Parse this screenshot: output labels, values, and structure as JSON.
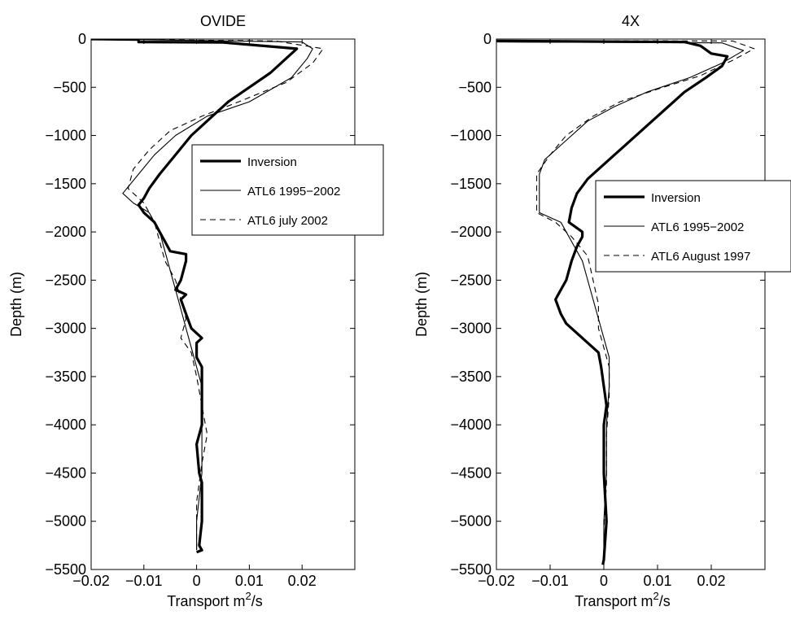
{
  "chart_data": [
    {
      "type": "line",
      "title": "OVIDE",
      "xlabel_main": "Transport m",
      "xlabel_sup": "2",
      "xlabel_tail": "/s",
      "ylabel": "Depth (m)",
      "xlim": [
        -0.02,
        0.03
      ],
      "ylim": [
        -5500,
        0
      ],
      "xticks": [
        -0.02,
        -0.01,
        0,
        0.01,
        0.02
      ],
      "xtick_labels": [
        "−0.02",
        "−0.01",
        "0",
        "0.01",
        "0.02"
      ],
      "yticks": [
        0,
        -500,
        -1000,
        -1500,
        -2000,
        -2500,
        -3000,
        -3500,
        -4000,
        -4500,
        -5000,
        -5500
      ],
      "ytick_labels": [
        "0",
        "−500",
        "−1000",
        "−1500",
        "−2000",
        "−2500",
        "−3000",
        "−3500",
        "−4000",
        "−4500",
        "−5000",
        "−5500"
      ],
      "legend_position": "center-right",
      "series": [
        {
          "name": "Inversion",
          "style": "thick",
          "points": [
            [
              -0.02,
              0
            ],
            [
              -0.011,
              -5
            ],
            [
              -0.011,
              -30
            ],
            [
              0.005,
              -35
            ],
            [
              0.019,
              -100
            ],
            [
              0.017,
              -200
            ],
            [
              0.014,
              -350
            ],
            [
              0.01,
              -500
            ],
            [
              0.006,
              -650
            ],
            [
              0.003,
              -800
            ],
            [
              -0.001,
              -1000
            ],
            [
              -0.004,
              -1200
            ],
            [
              -0.007,
              -1400
            ],
            [
              -0.009,
              -1550
            ],
            [
              -0.01,
              -1650
            ],
            [
              -0.011,
              -1720
            ],
            [
              -0.01,
              -1800
            ],
            [
              -0.008,
              -1900
            ],
            [
              -0.007,
              -2000
            ],
            [
              -0.006,
              -2100
            ],
            [
              -0.005,
              -2200
            ],
            [
              -0.002,
              -2230
            ],
            [
              -0.002,
              -2300
            ],
            [
              -0.003,
              -2500
            ],
            [
              -0.004,
              -2600
            ],
            [
              -0.002,
              -2650
            ],
            [
              -0.003,
              -2700
            ],
            [
              -0.002,
              -2850
            ],
            [
              -0.001,
              -3000
            ],
            [
              0,
              -3050
            ],
            [
              0.001,
              -3100
            ],
            [
              0,
              -3150
            ],
            [
              0,
              -3300
            ],
            [
              0.001,
              -3400
            ],
            [
              0.001,
              -3550
            ],
            [
              0.001,
              -4000
            ],
            [
              0,
              -4200
            ],
            [
              0.0005,
              -4500
            ],
            [
              0.001,
              -4600
            ],
            [
              0.001,
              -5000
            ],
            [
              0.0005,
              -5250
            ],
            [
              0.001,
              -5300
            ],
            [
              0,
              -5320
            ]
          ]
        },
        {
          "name": "ATL6 1995−2002",
          "style": "thin",
          "points": [
            [
              -0.02,
              0
            ],
            [
              0.02,
              -30
            ],
            [
              0.022,
              -100
            ],
            [
              0.021,
              -200
            ],
            [
              0.018,
              -400
            ],
            [
              0.01,
              -650
            ],
            [
              0.002,
              -800
            ],
            [
              -0.004,
              -1000
            ],
            [
              -0.008,
              -1200
            ],
            [
              -0.011,
              -1400
            ],
            [
              -0.014,
              -1600
            ],
            [
              -0.012,
              -1700
            ],
            [
              -0.009,
              -1800
            ],
            [
              -0.007,
              -2000
            ],
            [
              -0.006,
              -2200
            ],
            [
              -0.005,
              -2400
            ],
            [
              -0.004,
              -2600
            ],
            [
              -0.003,
              -2800
            ],
            [
              -0.002,
              -3000
            ],
            [
              -0.001,
              -3200
            ],
            [
              0,
              -3400
            ],
            [
              0.001,
              -3600
            ],
            [
              0.001,
              -4000
            ],
            [
              0.001,
              -4500
            ],
            [
              0,
              -5000
            ],
            [
              0,
              -5300
            ]
          ]
        },
        {
          "name": "ATL6 july 2002",
          "style": "dashed",
          "points": [
            [
              -0.02,
              0
            ],
            [
              0.015,
              -20
            ],
            [
              0.024,
              -100
            ],
            [
              0.022,
              -250
            ],
            [
              0.017,
              -450
            ],
            [
              0.008,
              -650
            ],
            [
              0.001,
              -800
            ],
            [
              -0.005,
              -950
            ],
            [
              -0.009,
              -1150
            ],
            [
              -0.012,
              -1350
            ],
            [
              -0.013,
              -1550
            ],
            [
              -0.01,
              -1700
            ],
            [
              -0.008,
              -1900
            ],
            [
              -0.007,
              -2100
            ],
            [
              -0.006,
              -2300
            ],
            [
              -0.004,
              -2500
            ],
            [
              -0.003,
              -2700
            ],
            [
              -0.002,
              -2900
            ],
            [
              -0.003,
              -3100
            ],
            [
              -0.001,
              -3250
            ],
            [
              0,
              -3500
            ],
            [
              0.001,
              -3800
            ],
            [
              0.002,
              -4100
            ],
            [
              0.001,
              -4400
            ],
            [
              0,
              -4800
            ],
            [
              0,
              -5300
            ]
          ]
        }
      ]
    },
    {
      "type": "line",
      "title": "4X",
      "xlabel_main": "Transport m",
      "xlabel_sup": "2",
      "xlabel_tail": "/s",
      "ylabel": "Depth (m)",
      "xlim": [
        -0.02,
        0.03
      ],
      "ylim": [
        -5500,
        0
      ],
      "xticks": [
        -0.02,
        -0.01,
        0,
        0.01,
        0.02
      ],
      "xtick_labels": [
        "−0.02",
        "−0.01",
        "0",
        "0.01",
        "0.02"
      ],
      "yticks": [
        0,
        -500,
        -1000,
        -1500,
        -2000,
        -2500,
        -3000,
        -3500,
        -4000,
        -4500,
        -5000,
        -5500
      ],
      "ytick_labels": [
        "0",
        "−500",
        "−1000",
        "−1500",
        "−2000",
        "−2500",
        "−3000",
        "−3500",
        "−4000",
        "−4500",
        "−5000",
        "−5500"
      ],
      "legend_position": "right",
      "series": [
        {
          "name": "Inversion",
          "style": "thick",
          "points": [
            [
              -0.02,
              -20
            ],
            [
              0.015,
              -30
            ],
            [
              0.018,
              -70
            ],
            [
              0.02,
              -150
            ],
            [
              0.023,
              -180
            ],
            [
              0.022,
              -280
            ],
            [
              0.019,
              -400
            ],
            [
              0.015,
              -550
            ],
            [
              0.012,
              -700
            ],
            [
              0.008,
              -900
            ],
            [
              0.004,
              -1100
            ],
            [
              0,
              -1300
            ],
            [
              -0.003,
              -1450
            ],
            [
              -0.005,
              -1600
            ],
            [
              -0.006,
              -1750
            ],
            [
              -0.0065,
              -1900
            ],
            [
              -0.004,
              -2000
            ],
            [
              -0.004,
              -2050
            ],
            [
              -0.005,
              -2150
            ],
            [
              -0.006,
              -2300
            ],
            [
              -0.007,
              -2500
            ],
            [
              -0.008,
              -2600
            ],
            [
              -0.009,
              -2700
            ],
            [
              -0.008,
              -2850
            ],
            [
              -0.007,
              -2950
            ],
            [
              -0.005,
              -3050
            ],
            [
              -0.003,
              -3150
            ],
            [
              -0.001,
              -3250
            ],
            [
              -0.0005,
              -3400
            ],
            [
              0,
              -3600
            ],
            [
              0.0005,
              -3800
            ],
            [
              0,
              -4000
            ],
            [
              0,
              -4500
            ],
            [
              0.0005,
              -5000
            ],
            [
              0,
              -5400
            ],
            [
              -0.0002,
              -5450
            ]
          ]
        },
        {
          "name": "ATL6 1995−2002",
          "style": "thin",
          "points": [
            [
              -0.02,
              -30
            ],
            [
              0.022,
              -40
            ],
            [
              0.026,
              -120
            ],
            [
              0.022,
              -250
            ],
            [
              0.016,
              -400
            ],
            [
              0.008,
              -550
            ],
            [
              0.002,
              -700
            ],
            [
              -0.003,
              -850
            ],
            [
              -0.007,
              -1050
            ],
            [
              -0.011,
              -1250
            ],
            [
              -0.012,
              -1400
            ],
            [
              -0.012,
              -1800
            ],
            [
              -0.008,
              -1900
            ],
            [
              -0.006,
              -2100
            ],
            [
              -0.004,
              -2300
            ],
            [
              -0.003,
              -2500
            ],
            [
              -0.002,
              -2700
            ],
            [
              -0.001,
              -2900
            ],
            [
              0,
              -3100
            ],
            [
              0.001,
              -3300
            ],
            [
              0.001,
              -3600
            ],
            [
              0.0005,
              -4000
            ],
            [
              0.0005,
              -4500
            ],
            [
              0,
              -5000
            ],
            [
              0,
              -5450
            ]
          ]
        },
        {
          "name": "ATL6 August 1997",
          "style": "dashed",
          "points": [
            [
              -0.02,
              -15
            ],
            [
              0.024,
              -20
            ],
            [
              0.028,
              -100
            ],
            [
              0.024,
              -220
            ],
            [
              0.018,
              -380
            ],
            [
              0.01,
              -520
            ],
            [
              0.003,
              -650
            ],
            [
              -0.002,
              -800
            ],
            [
              -0.007,
              -1000
            ],
            [
              -0.01,
              -1200
            ],
            [
              -0.0125,
              -1400
            ],
            [
              -0.0125,
              -1800
            ],
            [
              -0.009,
              -1900
            ],
            [
              -0.006,
              -2050
            ],
            [
              -0.003,
              -2250
            ],
            [
              -0.002,
              -2500
            ],
            [
              -0.001,
              -2750
            ],
            [
              -0.001,
              -3000
            ],
            [
              0,
              -3200
            ],
            [
              0.001,
              -3400
            ],
            [
              0.001,
              -3700
            ],
            [
              0.0005,
              -4100
            ],
            [
              0.0005,
              -4600
            ],
            [
              0,
              -5100
            ],
            [
              0,
              -5450
            ]
          ]
        }
      ]
    }
  ]
}
